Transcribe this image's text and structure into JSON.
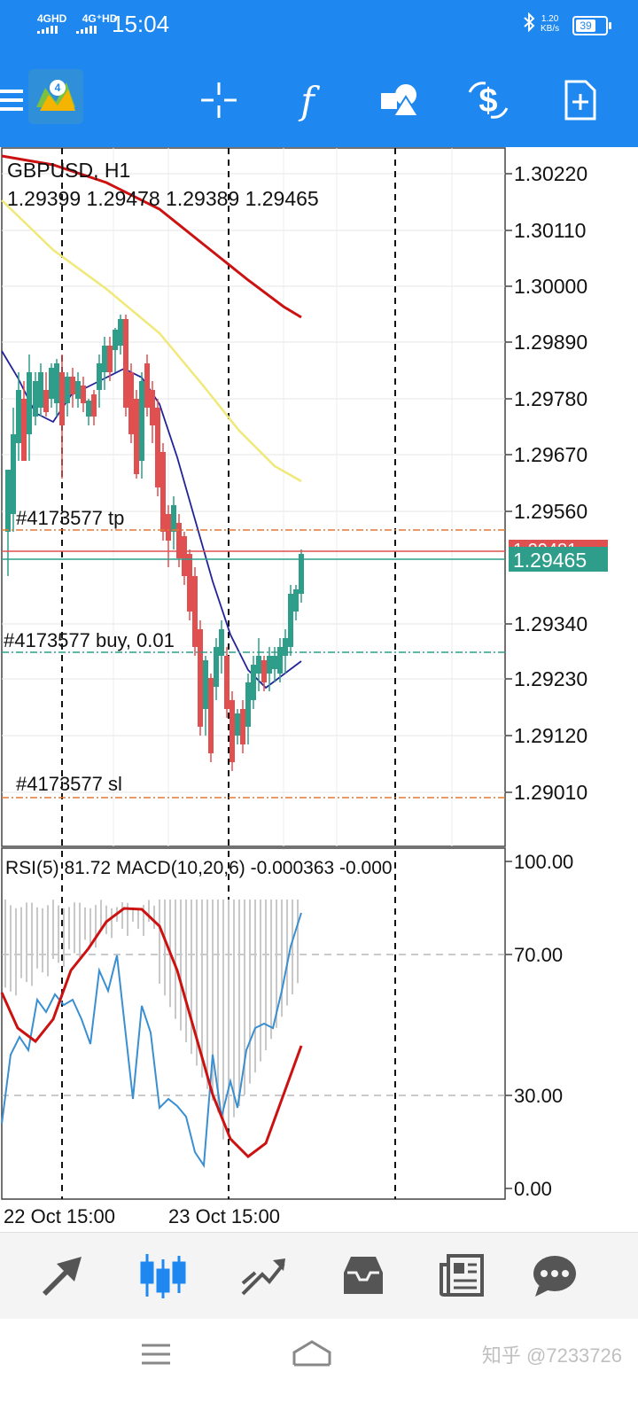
{
  "status_bar": {
    "network_1": "4GHD",
    "network_2": "4G⁺HD",
    "time": "15:04",
    "net_speed_value": "1.20",
    "net_speed_unit": "KB/s",
    "battery": "39"
  },
  "toolbar": {
    "icons": [
      "menu-icon",
      "metatrader-logo",
      "crosshair-icon",
      "indicators-icon",
      "objects-icon",
      "trade-icon",
      "new-order-icon"
    ],
    "indicator_glyph": "f"
  },
  "chart": {
    "symbol_line": "GBPUSD, H1",
    "ohlc_line": "1.29399 1.29478 1.29389 1.29465",
    "price_ticks": [
      "1.30220",
      "1.30110",
      "1.30000",
      "1.29890",
      "1.29780",
      "1.29670",
      "1.29560",
      "1.29340",
      "1.29230",
      "1.29120",
      "1.29010"
    ],
    "current_price": "1.29465",
    "ask_price_label": "1.29481",
    "tp_label": "#4173577 tp",
    "buy_label": "#4173577 buy, 0.01",
    "sl_label": "#4173577 sl",
    "colors": {
      "bull": "#2e9e8a",
      "bear": "#e05050",
      "ma_slow": "#cc1111",
      "ma_mid": "#f0e878",
      "ma_fast": "#22229a",
      "price_badge": "#2e9e8a",
      "ask_badge": "#e05050"
    }
  },
  "subwindow": {
    "label": "RSI(5) 81.72 MACD(10,20,6)  -0.000363 -0.000",
    "ticks": [
      "100.00",
      "70.00",
      "30.00",
      "0.00"
    ]
  },
  "time_axis": {
    "labels": [
      "22 Oct 15:00",
      "23 Oct 15:00"
    ]
  },
  "bottom_nav": {
    "tabs": [
      "quotes-icon",
      "chart-icon",
      "trade-icon",
      "history-icon",
      "news-icon",
      "chat-icon"
    ]
  },
  "watermark": "知乎 @7233726"
}
